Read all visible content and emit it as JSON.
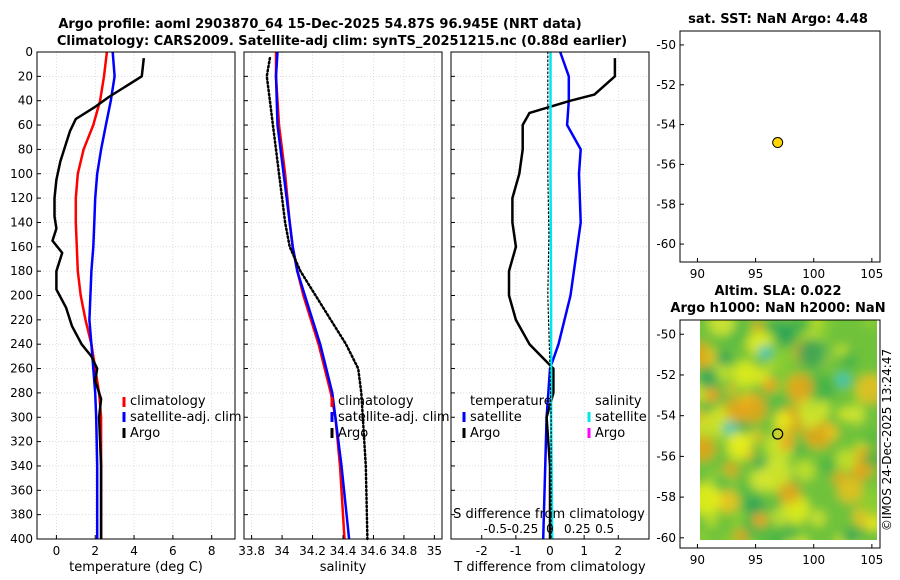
{
  "header": {
    "line1": "Argo profile: aoml 2903870_64 15-Dec-2025 54.87S 96.945E (NRT data)",
    "line2": "Climatology: CARS2009. Satellite-adj clim: synTS_20251215.nc (0.88d earlier)"
  },
  "side_titles": {
    "sst": "sat. SST: NaN Argo: 4.48",
    "sla_1": "Altim. SLA: 0.022",
    "sla_2": "Argo h1000: NaN h2000: NaN"
  },
  "watermark": "©IMOS 24-Dec-2025 13:24:47",
  "legend_labels": {
    "climatology": "climatology",
    "satellite_adj": "satellite-adj. clim",
    "argo": "Argo",
    "temperature": "temperature",
    "salinity": "salinity",
    "satellite": "satellite"
  },
  "colors": {
    "climatology": "#ff0000",
    "satellite_adj": "#0000ff",
    "argo": "#000000",
    "t_satellite": "#0000ff",
    "t_argo": "#000000",
    "s_satellite": "#00e5ee",
    "s_argo": "#ff00ff",
    "marker": "#ffd700"
  },
  "chart_data": [
    {
      "type": "line",
      "name": "temperature-profile",
      "title": "",
      "xlabel": "temperature (deg C)",
      "ylabel": "",
      "xlim": [
        -1,
        9.2
      ],
      "ylim": [
        400,
        0
      ],
      "xticks": [
        0,
        2,
        4,
        6,
        8
      ],
      "yticks": [
        0,
        20,
        40,
        60,
        80,
        100,
        120,
        140,
        160,
        180,
        200,
        220,
        240,
        260,
        280,
        300,
        320,
        340,
        360,
        380,
        400
      ],
      "series": [
        {
          "name": "climatology",
          "style": "solid",
          "depth": [
            0,
            20,
            40,
            60,
            80,
            100,
            120,
            140,
            160,
            180,
            200,
            220,
            240,
            260,
            280,
            300,
            340,
            400
          ],
          "values": [
            2.6,
            2.45,
            2.25,
            1.9,
            1.4,
            1.1,
            1.0,
            1.0,
            1.05,
            1.1,
            1.25,
            1.5,
            1.8,
            2.0,
            2.2,
            2.3,
            2.3,
            2.3
          ]
        },
        {
          "name": "satellite-adj. clim",
          "style": "solid",
          "depth": [
            0,
            20,
            40,
            60,
            80,
            100,
            120,
            140,
            160,
            180,
            200,
            220,
            240,
            260,
            280,
            300,
            340,
            400
          ],
          "values": [
            2.9,
            3.0,
            2.8,
            2.55,
            2.3,
            2.1,
            2.0,
            1.95,
            1.9,
            1.8,
            1.75,
            1.7,
            1.8,
            1.9,
            2.0,
            2.05,
            2.1,
            2.1
          ]
        },
        {
          "name": "Argo",
          "style": "solid",
          "depth": [
            5,
            20,
            30,
            37,
            45,
            55,
            65,
            75,
            90,
            105,
            120,
            135,
            145,
            155,
            165,
            180,
            195,
            210,
            225,
            240,
            250,
            260,
            270,
            285,
            300,
            340,
            400
          ],
          "values": [
            4.5,
            4.4,
            3.4,
            2.7,
            2.0,
            1.0,
            0.7,
            0.5,
            0.2,
            0.0,
            -0.1,
            -0.1,
            0.0,
            -0.2,
            0.3,
            0.0,
            0.0,
            0.5,
            0.8,
            1.3,
            1.8,
            2.1,
            2.0,
            2.3,
            2.2,
            2.3,
            2.3
          ]
        }
      ]
    },
    {
      "type": "line",
      "name": "salinity-profile",
      "title": "",
      "xlabel": "salinity",
      "ylabel": "",
      "xlim": [
        33.75,
        35.05
      ],
      "ylim": [
        400,
        0
      ],
      "xticks": [
        33.8,
        34,
        34.2,
        34.4,
        34.6,
        34.8,
        35
      ],
      "series": [
        {
          "name": "climatology",
          "style": "solid",
          "depth": [
            0,
            20,
            60,
            100,
            140,
            160,
            180,
            200,
            240,
            280,
            300,
            340,
            400
          ],
          "values": [
            33.96,
            33.96,
            33.98,
            34.02,
            34.05,
            34.07,
            34.1,
            34.14,
            34.24,
            34.32,
            34.35,
            34.38,
            34.41
          ]
        },
        {
          "name": "satellite-adj. clim",
          "style": "solid",
          "depth": [
            0,
            20,
            60,
            100,
            140,
            160,
            180,
            200,
            240,
            280,
            300,
            340,
            400
          ],
          "values": [
            33.97,
            33.96,
            33.97,
            34.01,
            34.05,
            34.07,
            34.1,
            34.15,
            34.25,
            34.33,
            34.35,
            34.39,
            34.44
          ]
        },
        {
          "name": "Argo",
          "style": "dotted",
          "depth": [
            5,
            20,
            40,
            60,
            80,
            100,
            120,
            140,
            160,
            180,
            200,
            220,
            240,
            260,
            280,
            300,
            340,
            400
          ],
          "values": [
            33.92,
            33.9,
            33.92,
            33.94,
            33.96,
            33.98,
            34.0,
            34.02,
            34.05,
            34.12,
            34.22,
            34.32,
            34.42,
            34.5,
            34.52,
            34.53,
            34.55,
            34.56
          ]
        }
      ]
    },
    {
      "type": "line",
      "name": "difference-profile",
      "title": "",
      "xlabel": "T difference from climatology",
      "xlabel_top": "S difference from climatology",
      "ylabel": "",
      "xlim": [
        -2.9,
        2.9
      ],
      "ylim": [
        400,
        0
      ],
      "xticks": [
        -2,
        -1,
        0,
        1,
        2
      ],
      "xticks_s": [
        -0.5,
        -0.25,
        0,
        0.25,
        0.5
      ],
      "series": [
        {
          "name": "T satellite",
          "style": "solid",
          "depth": [
            0,
            20,
            40,
            60,
            80,
            100,
            140,
            200,
            240,
            260,
            300,
            400
          ],
          "values": [
            0.3,
            0.55,
            0.55,
            0.5,
            0.9,
            0.85,
            0.9,
            0.6,
            0.25,
            0.0,
            -0.1,
            -0.2
          ]
        },
        {
          "name": "T Argo",
          "style": "solid",
          "depth": [
            5,
            20,
            35,
            40,
            50,
            60,
            80,
            100,
            120,
            140,
            160,
            180,
            200,
            220,
            240,
            260,
            280,
            300,
            340,
            400
          ],
          "values": [
            1.9,
            1.9,
            1.3,
            0.6,
            -0.6,
            -0.8,
            -0.8,
            -0.9,
            -1.1,
            -1.1,
            -1.0,
            -1.2,
            -1.2,
            -1.0,
            -0.6,
            0.1,
            0.1,
            -0.1,
            0.0,
            0.0
          ]
        },
        {
          "name": "S satellite",
          "style": "solid",
          "depth": [
            0,
            100,
            200,
            300,
            400
          ],
          "values": [
            0.005,
            0.005,
            0.01,
            0.01,
            0.02
          ]
        },
        {
          "name": "S Argo",
          "style": "dotted",
          "depth": [
            0,
            100,
            150,
            200,
            260,
            300,
            400
          ],
          "values": [
            -0.02,
            -0.02,
            -0.01,
            -0.02,
            0.0,
            0.01,
            0.01
          ]
        }
      ]
    },
    {
      "type": "scatter",
      "name": "sst-map",
      "title": "sat. SST: NaN Argo: 4.48",
      "xlim": [
        88.5,
        105.7
      ],
      "ylim": [
        -60.9,
        -49.3
      ],
      "xticks": [
        90,
        95,
        100,
        105
      ],
      "yticks": [
        -50,
        -52,
        -54,
        -56,
        -58,
        -60
      ],
      "points": [
        {
          "x": 96.9,
          "y": -54.9
        }
      ]
    },
    {
      "type": "heatmap",
      "name": "sla-map",
      "title": "Altim. SLA: 0.022",
      "xlim": [
        88.5,
        105.7
      ],
      "ylim": [
        -60.5,
        -49.3
      ],
      "xticks": [
        90,
        95,
        100,
        105
      ],
      "yticks": [
        -50,
        -52,
        -54,
        -56,
        -58,
        -60
      ],
      "field_extent": {
        "x": [
          90,
          105.7
        ],
        "y": [
          -60.5,
          -49.3
        ]
      },
      "points": [
        {
          "x": 96.9,
          "y": -54.9
        }
      ]
    }
  ]
}
